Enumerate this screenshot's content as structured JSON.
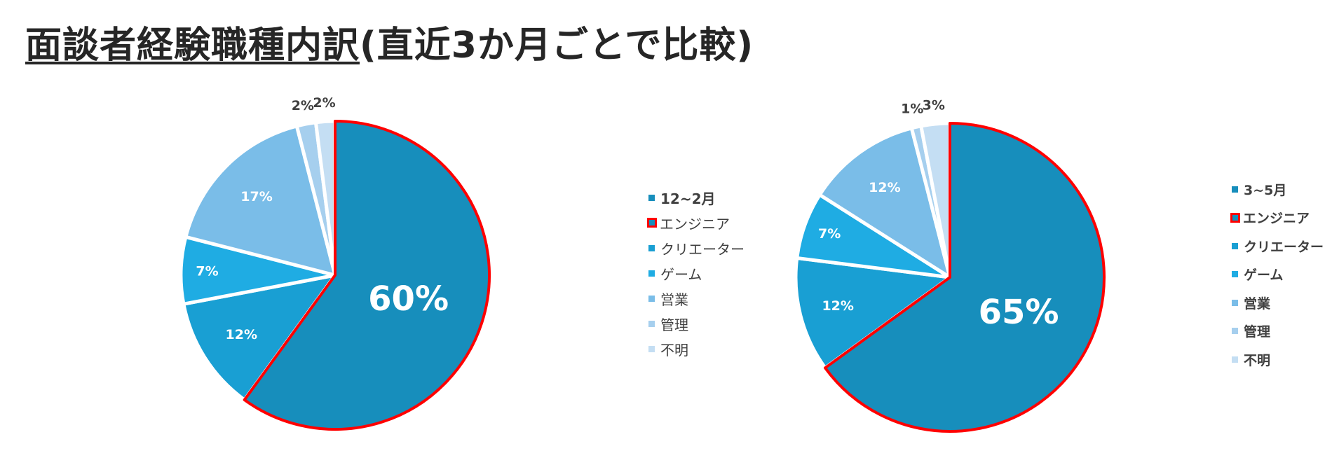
{
  "title": {
    "underlined": "面談者経験職種内訳",
    "rest": "(直近3か月ごとで比較)"
  },
  "colors": {
    "エンジニア": "#178EBC",
    "クリエーター": "#199FD3",
    "ゲーム": "#1FACE3",
    "営業": "#7ABDE8",
    "管理": "#A6CFEE",
    "不明": "#C4DEF3",
    "highlight": "#ff0000"
  },
  "chart_data": [
    {
      "type": "pie",
      "title": "12~2月",
      "categories": [
        "エンジニア",
        "クリエーター",
        "ゲーム",
        "営業",
        "管理",
        "不明"
      ],
      "values": [
        60,
        12,
        7,
        17,
        2,
        2
      ],
      "labels": [
        "60%",
        "12%",
        "7%",
        "17%",
        "2%",
        "2%"
      ],
      "highlighted": "エンジニア",
      "legend": "right"
    },
    {
      "type": "pie",
      "title": "3~5月",
      "categories": [
        "エンジニア",
        "クリエーター",
        "ゲーム",
        "営業",
        "管理",
        "不明"
      ],
      "values": [
        65,
        12,
        7,
        12,
        1,
        3
      ],
      "labels": [
        "65%",
        "12%",
        "7%",
        "12%",
        "1%",
        "3%"
      ],
      "highlighted": "エンジニア",
      "legend": "right"
    }
  ]
}
